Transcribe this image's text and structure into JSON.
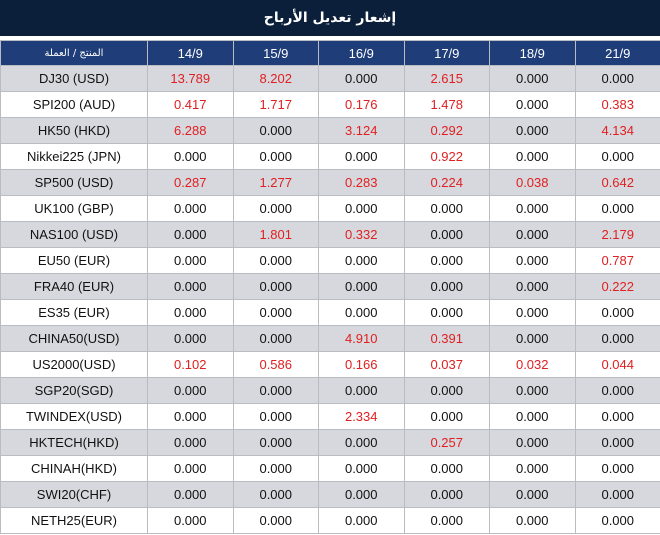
{
  "title": "إشعار تعديل الأرباح",
  "header": {
    "corner": "المنتج / العملة",
    "dates": [
      "14/9",
      "15/9",
      "16/9",
      "17/9",
      "18/9",
      "21/9"
    ]
  },
  "rows": [
    {
      "product": "DJ30 (USD)",
      "values": [
        "13.789",
        "8.202",
        "0.000",
        "2.615",
        "0.000",
        "0.000"
      ]
    },
    {
      "product": "SPI200 (AUD)",
      "values": [
        "0.417",
        "1.717",
        "0.176",
        "1.478",
        "0.000",
        "0.383"
      ]
    },
    {
      "product": "HK50 (HKD)",
      "values": [
        "6.288",
        "0.000",
        "3.124",
        "0.292",
        "0.000",
        "4.134"
      ]
    },
    {
      "product": "Nikkei225 (JPN)",
      "values": [
        "0.000",
        "0.000",
        "0.000",
        "0.922",
        "0.000",
        "0.000"
      ]
    },
    {
      "product": "SP500 (USD)",
      "values": [
        "0.287",
        "1.277",
        "0.283",
        "0.224",
        "0.038",
        "0.642"
      ]
    },
    {
      "product": "UK100 (GBP)",
      "values": [
        "0.000",
        "0.000",
        "0.000",
        "0.000",
        "0.000",
        "0.000"
      ]
    },
    {
      "product": "NAS100 (USD)",
      "values": [
        "0.000",
        "1.801",
        "0.332",
        "0.000",
        "0.000",
        "2.179"
      ]
    },
    {
      "product": "EU50 (EUR)",
      "values": [
        "0.000",
        "0.000",
        "0.000",
        "0.000",
        "0.000",
        "0.787"
      ]
    },
    {
      "product": "FRA40 (EUR)",
      "values": [
        "0.000",
        "0.000",
        "0.000",
        "0.000",
        "0.000",
        "0.222"
      ]
    },
    {
      "product": "ES35 (EUR)",
      "values": [
        "0.000",
        "0.000",
        "0.000",
        "0.000",
        "0.000",
        "0.000"
      ]
    },
    {
      "product": "CHINA50(USD)",
      "values": [
        "0.000",
        "0.000",
        "4.910",
        "0.391",
        "0.000",
        "0.000"
      ]
    },
    {
      "product": "US2000(USD)",
      "values": [
        "0.102",
        "0.586",
        "0.166",
        "0.037",
        "0.032",
        "0.044"
      ]
    },
    {
      "product": "SGP20(SGD)",
      "values": [
        "0.000",
        "0.000",
        "0.000",
        "0.000",
        "0.000",
        "0.000"
      ]
    },
    {
      "product": "TWINDEX(USD)",
      "values": [
        "0.000",
        "0.000",
        "2.334",
        "0.000",
        "0.000",
        "0.000"
      ]
    },
    {
      "product": "HKTECH(HKD)",
      "values": [
        "0.000",
        "0.000",
        "0.000",
        "0.257",
        "0.000",
        "0.000"
      ]
    },
    {
      "product": "CHINAH(HKD)",
      "values": [
        "0.000",
        "0.000",
        "0.000",
        "0.000",
        "0.000",
        "0.000"
      ]
    },
    {
      "product": "SWI20(CHF)",
      "values": [
        "0.000",
        "0.000",
        "0.000",
        "0.000",
        "0.000",
        "0.000"
      ]
    },
    {
      "product": "NETH25(EUR)",
      "values": [
        "0.000",
        "0.000",
        "0.000",
        "0.000",
        "0.000",
        "0.000"
      ]
    }
  ],
  "colors": {
    "title_bg": "#0c1f3a",
    "header_bg": "#1f3d78",
    "stripe": "#d7d8de",
    "positive_value": "#e02020",
    "zero_value": "#111111"
  }
}
